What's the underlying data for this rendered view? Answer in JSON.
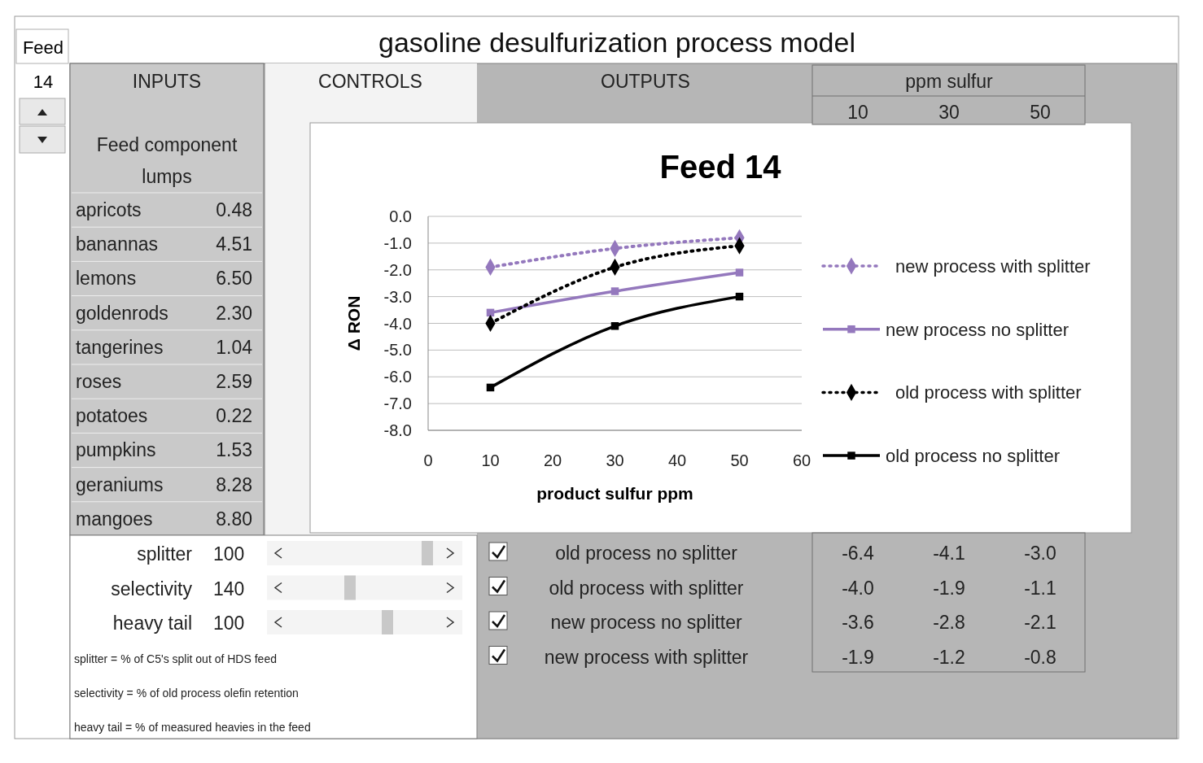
{
  "chart_data": [
    {
      "type": "other",
      "title": "gasoline desulfurization process model",
      "annotations": [
        "Feed",
        "14",
        "INPUTS",
        "CONTROLS",
        "OUTPUTS"
      ]
    },
    {
      "type": "other",
      "title": "Feed component lumps",
      "categories": [
        "apricots",
        "banannas",
        "lemons",
        "goldenrods",
        "tangerines",
        "roses",
        "potatoes",
        "pumpkins",
        "geraniums",
        "mangoes"
      ],
      "value_labels": [
        "0.48",
        "4.51",
        "6.50",
        "2.30",
        "1.04",
        "2.59",
        "0.22",
        "1.53",
        "8.28",
        "8.80"
      ]
    },
    {
      "type": "other",
      "categories": [
        "splitter",
        "selectivity",
        "heavy tail"
      ],
      "values": [
        100,
        140,
        100
      ],
      "data_labels": true,
      "annotations": [
        "splitter = % of C5's split out of HDS feed",
        "selectivity = % of old process olefin retention",
        "heavy tail = % of measured heavies in the feed"
      ]
    },
    {
      "type": "line",
      "title": "Feed 14",
      "xlabel": "product sulfur ppm",
      "ylabel": "Δ RON",
      "x": [
        10,
        30,
        50
      ],
      "xlim": [
        0,
        60
      ],
      "xticks": [
        0,
        10,
        20,
        30,
        40,
        50,
        60
      ],
      "ylim": [
        -8,
        0
      ],
      "yticks": [
        {
          "value": 0,
          "label": "0.0"
        },
        {
          "value": -1,
          "label": "-1.0"
        },
        {
          "value": -2,
          "label": "-2.0"
        },
        {
          "value": -3,
          "label": "-3.0"
        },
        {
          "value": -4,
          "label": "-4.0"
        },
        {
          "value": -5,
          "label": "-5.0"
        },
        {
          "value": -6,
          "label": "-6.0"
        },
        {
          "value": -7,
          "label": "-7.0"
        },
        {
          "value": -8,
          "label": "-8.0"
        }
      ],
      "grid": "y",
      "legend": "right",
      "series": [
        {
          "name": "new process with splitter",
          "color": "#9478bd",
          "values": [
            -1.9,
            -1.2,
            -0.8
          ],
          "marker": "diamond",
          "line_style": "dotted"
        },
        {
          "name": "new process no splitter",
          "color": "#9478bd",
          "values": [
            -3.6,
            -2.8,
            -2.1
          ],
          "marker": "square",
          "line_style": "solid"
        },
        {
          "name": "old process with splitter",
          "color": "#000000",
          "values": [
            -4.0,
            -1.9,
            -1.1
          ],
          "marker": "diamond",
          "line_style": "dotted"
        },
        {
          "name": "old process no splitter",
          "color": "#000000",
          "values": [
            -6.4,
            -4.1,
            -3.0
          ],
          "marker": "square",
          "line_style": "solid"
        }
      ]
    },
    {
      "type": "other",
      "xlabel": "ppm sulfur",
      "categories": [
        "10",
        "30",
        "50"
      ],
      "series": [
        {
          "name": "old process no splitter",
          "values": [
            -6.4,
            -4.1,
            -3.0
          ],
          "value_labels": [
            "-6.4",
            "-4.1",
            "-3.0"
          ]
        },
        {
          "name": "old process with splitter",
          "values": [
            -4.0,
            -1.9,
            -1.1
          ],
          "value_labels": [
            "-4.0",
            "-1.9",
            "-1.1"
          ]
        },
        {
          "name": "new process no splitter",
          "values": [
            -3.6,
            -2.8,
            -2.1
          ],
          "value_labels": [
            "-3.6",
            "-2.8",
            "-2.1"
          ]
        },
        {
          "name": "new process with splitter",
          "values": [
            -1.9,
            -1.2,
            -0.8
          ],
          "value_labels": [
            "-1.9",
            "-1.2",
            "-0.8"
          ]
        }
      ]
    }
  ]
}
